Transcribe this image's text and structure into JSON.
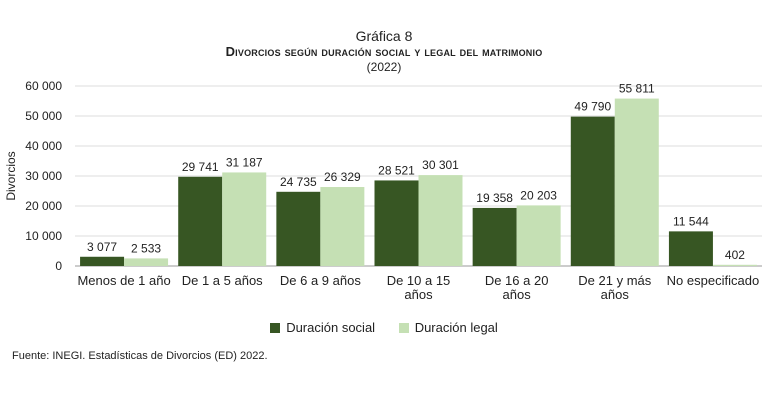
{
  "header": {
    "label": "Gráfica 8",
    "title": "Divorcios según duración social y legal del matrimonio",
    "year": "(2022)"
  },
  "colors": {
    "social": "#375623",
    "legal": "#c5e0b4"
  },
  "source": "Fuente: INEGI. Estadísticas de Divorcios (ED) 2022.",
  "chart_data": {
    "type": "bar",
    "title": "Divorcios según duración social y legal del matrimonio",
    "subtitle": "(2022)",
    "ylabel": "Divorcios",
    "xlabel": "",
    "ylim": [
      0,
      60000
    ],
    "yticks": [
      0,
      10000,
      20000,
      30000,
      40000,
      50000,
      60000
    ],
    "ytick_labels": [
      "0",
      "10 000",
      "20 000",
      "30 000",
      "40 000",
      "50 000",
      "60 000"
    ],
    "grid": true,
    "legend_position": "bottom",
    "categories": [
      [
        "Menos de 1 año"
      ],
      [
        "De 1 a 5 años"
      ],
      [
        "De 6 a 9 años"
      ],
      [
        "De 10 a 15",
        "años"
      ],
      [
        "De 16 a 20",
        "años"
      ],
      [
        "De 21 y más",
        "años"
      ],
      [
        "No especificado"
      ]
    ],
    "series": [
      {
        "name": "Duración social",
        "values": [
          3077,
          29741,
          24735,
          28521,
          19358,
          49790,
          11544
        ],
        "labels": [
          "3 077",
          "29 741",
          "24 735",
          "28 521",
          "19 358",
          "49 790",
          "11 544"
        ]
      },
      {
        "name": "Duración legal",
        "values": [
          2533,
          31187,
          26329,
          30301,
          20203,
          55811,
          402
        ],
        "labels": [
          "2 533",
          "31 187",
          "26 329",
          "30 301",
          "20 203",
          "55 811",
          "402"
        ]
      }
    ]
  }
}
